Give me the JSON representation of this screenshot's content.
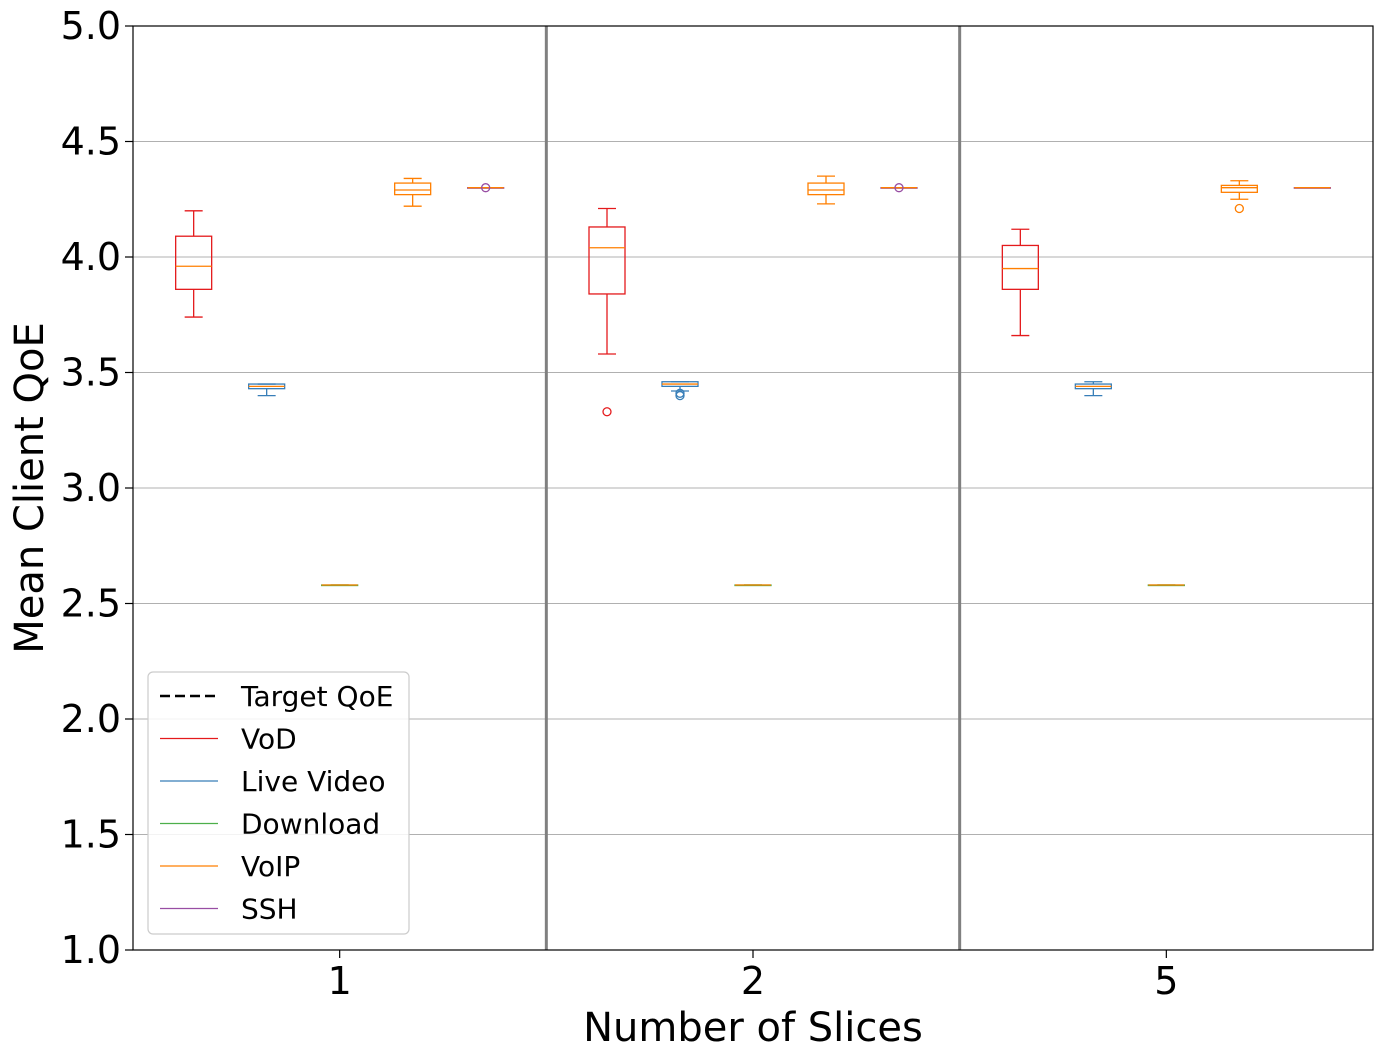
{
  "chart_data": {
    "type": "box",
    "xlabel": "Number of Slices",
    "ylabel": "Mean Client QoE",
    "ylim": [
      1.0,
      5.0
    ],
    "yticks": [
      "1.0",
      "1.5",
      "2.0",
      "2.5",
      "3.0",
      "3.5",
      "4.0",
      "4.5",
      "5.0"
    ],
    "categories": [
      "1",
      "2",
      "5"
    ],
    "grid": "horizontal",
    "legend_position": "lower-left",
    "legend": [
      {
        "label": "Target QoE",
        "color": "#000000",
        "style": "dashed"
      },
      {
        "label": "VoD",
        "color": "#e41a1c",
        "style": "solid"
      },
      {
        "label": "Live Video",
        "color": "#377eb8",
        "style": "solid"
      },
      {
        "label": "Download",
        "color": "#4daf4a",
        "style": "solid"
      },
      {
        "label": "VoIP",
        "color": "#ff7f00",
        "style": "solid"
      },
      {
        "label": "SSH",
        "color": "#984ea3",
        "style": "solid"
      }
    ],
    "series": [
      {
        "name": "VoD",
        "color": "#e41a1c",
        "median_color": "#ff7f00",
        "boxes": [
          {
            "category": "1",
            "whisker_low": 3.74,
            "q1": 3.86,
            "median": 3.96,
            "q3": 4.09,
            "whisker_high": 4.2,
            "outliers": []
          },
          {
            "category": "2",
            "whisker_low": 3.58,
            "q1": 3.84,
            "median": 4.04,
            "q3": 4.13,
            "whisker_high": 4.21,
            "outliers": [
              3.33
            ]
          },
          {
            "category": "5",
            "whisker_low": 3.66,
            "q1": 3.86,
            "median": 3.95,
            "q3": 4.05,
            "whisker_high": 4.12,
            "outliers": []
          }
        ]
      },
      {
        "name": "Live Video",
        "color": "#377eb8",
        "median_color": "#ff7f00",
        "boxes": [
          {
            "category": "1",
            "whisker_low": 3.4,
            "q1": 3.43,
            "median": 3.44,
            "q3": 3.45,
            "whisker_high": 3.45,
            "outliers": []
          },
          {
            "category": "2",
            "whisker_low": 3.42,
            "q1": 3.44,
            "median": 3.45,
            "q3": 3.46,
            "whisker_high": 3.46,
            "outliers": [
              3.41,
              3.4
            ]
          },
          {
            "category": "5",
            "whisker_low": 3.4,
            "q1": 3.43,
            "median": 3.44,
            "q3": 3.45,
            "whisker_high": 3.46,
            "outliers": []
          }
        ]
      },
      {
        "name": "Download",
        "color": "#4daf4a",
        "median_color": "#ff7f00",
        "boxes": [
          {
            "category": "1",
            "whisker_low": 2.58,
            "q1": 2.58,
            "median": 2.58,
            "q3": 2.58,
            "whisker_high": 2.58,
            "outliers": []
          },
          {
            "category": "2",
            "whisker_low": 2.58,
            "q1": 2.58,
            "median": 2.58,
            "q3": 2.58,
            "whisker_high": 2.58,
            "outliers": []
          },
          {
            "category": "5",
            "whisker_low": 2.58,
            "q1": 2.58,
            "median": 2.58,
            "q3": 2.58,
            "whisker_high": 2.58,
            "outliers": []
          }
        ]
      },
      {
        "name": "VoIP",
        "color": "#ff7f00",
        "median_color": "#ff7f00",
        "boxes": [
          {
            "category": "1",
            "whisker_low": 4.22,
            "q1": 4.27,
            "median": 4.29,
            "q3": 4.32,
            "whisker_high": 4.34,
            "outliers": []
          },
          {
            "category": "2",
            "whisker_low": 4.23,
            "q1": 4.27,
            "median": 4.29,
            "q3": 4.32,
            "whisker_high": 4.35,
            "outliers": []
          },
          {
            "category": "5",
            "whisker_low": 4.25,
            "q1": 4.28,
            "median": 4.3,
            "q3": 4.31,
            "whisker_high": 4.33,
            "outliers": [
              4.21
            ]
          }
        ]
      },
      {
        "name": "SSH",
        "color": "#984ea3",
        "median_color": "#ff7f00",
        "boxes": [
          {
            "category": "1",
            "whisker_low": 4.3,
            "q1": 4.3,
            "median": 4.3,
            "q3": 4.3,
            "whisker_high": 4.3,
            "outliers": [
              4.3
            ]
          },
          {
            "category": "2",
            "whisker_low": 4.3,
            "q1": 4.3,
            "median": 4.3,
            "q3": 4.3,
            "whisker_high": 4.3,
            "outliers": [
              4.3
            ]
          },
          {
            "category": "5",
            "whisker_low": 4.3,
            "q1": 4.3,
            "median": 4.3,
            "q3": 4.3,
            "whisker_high": 4.3,
            "outliers": []
          }
        ]
      }
    ]
  }
}
